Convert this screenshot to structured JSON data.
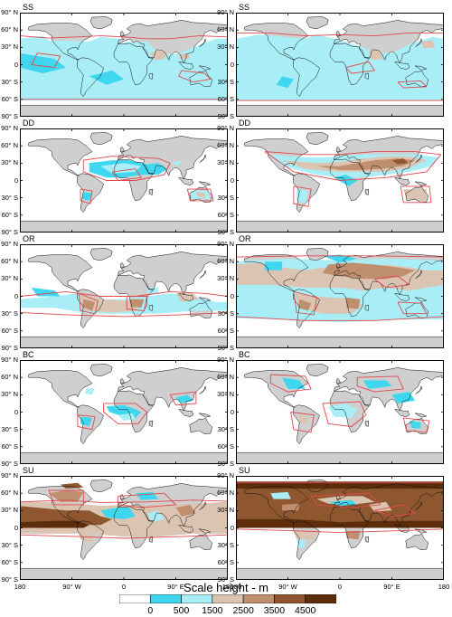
{
  "chart_data": {
    "type": "heatmap",
    "colorbar": {
      "title": "Scale height - m",
      "levels": [
        0,
        500,
        1500,
        2500,
        3500,
        4500
      ],
      "tick_labels": [
        "0",
        "500",
        "1500",
        "2500",
        "3500",
        "4500"
      ],
      "colors": [
        "#ffffff",
        "#3fd7ef",
        "#a9eef6",
        "#dcc4b2",
        "#bf8f6f",
        "#8e5730",
        "#5e2d0b"
      ]
    },
    "latitude_ticks": [
      "90° N",
      "60° N",
      "30° N",
      "0",
      "30° S",
      "60° S",
      "90° S"
    ],
    "longitude_ticks": [
      "180",
      "90° W",
      "0",
      "90° E",
      "180"
    ],
    "contour_color": "#e0474c",
    "land_color": "#cfcfcf",
    "panels": [
      {
        "title": "SS",
        "fill": "sea_salt_left"
      },
      {
        "title": "SS",
        "fill": "sea_salt_right"
      },
      {
        "title": "DD",
        "fill": "dust_left"
      },
      {
        "title": "DD",
        "fill": "dust_right"
      },
      {
        "title": "OR",
        "fill": "organic_left"
      },
      {
        "title": "OR",
        "fill": "organic_right"
      },
      {
        "title": "BC",
        "fill": "bc_left"
      },
      {
        "title": "BC",
        "fill": "bc_right"
      },
      {
        "title": "SU",
        "fill": "sulfate_left"
      },
      {
        "title": "SU",
        "fill": "sulfate_right"
      }
    ]
  }
}
